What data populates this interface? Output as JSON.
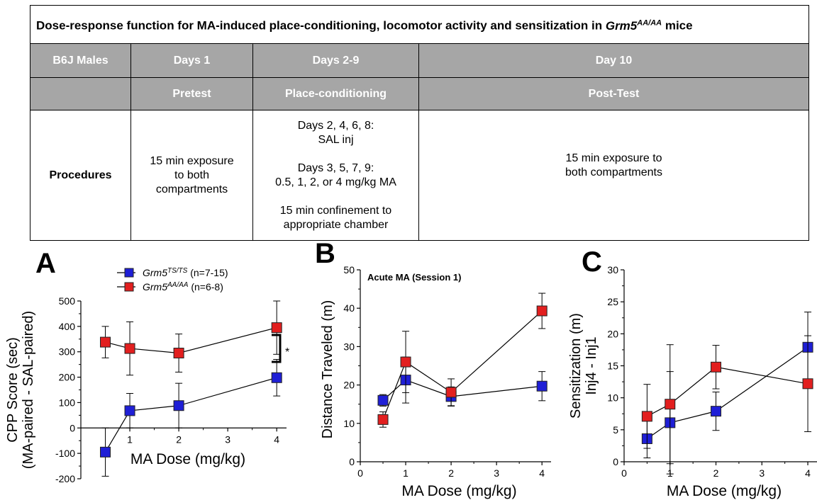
{
  "table": {
    "title_main": "Dose-response function for MA-induced place-conditioning, locomotor activity and sensitization in ",
    "title_strain": "Grm5",
    "title_strain_sup": "AA/AA",
    "title_suffix": " mice",
    "header_row": [
      "B6J Males",
      "Days 1",
      "Days 2-9",
      "Day 10"
    ],
    "subheader_row": [
      "",
      "Pretest",
      "Place-conditioning",
      "Post-Test"
    ],
    "procedures_label": "Procedures",
    "procedures": [
      "15 min exposure\nto both\ncompartments",
      "Days 2, 4, 6, 8:\nSAL inj\n\nDays 3, 5, 7, 9:\n0.5, 1, 2, or 4 mg/kg MA\n\n15 min confinement to\nappropriate chamber",
      "15 min exposure to\nboth compartments"
    ]
  },
  "colors": {
    "ts": "#1f1fd6",
    "aa": "#e21f1f"
  },
  "chart_data": [
    {
      "panel": "A",
      "type": "scatter",
      "xlabel": "MA Dose (mg/kg)",
      "ylabel_line1": "CPP Score (sec)",
      "ylabel_line2": "(MA-paired - SAL-paired)",
      "xlim": [
        0,
        4.2
      ],
      "ylim": [
        -200,
        500
      ],
      "xticks": [
        1,
        2,
        3,
        4
      ],
      "yticks": [
        -200,
        -100,
        0,
        100,
        200,
        300,
        400,
        500
      ],
      "x": [
        0.5,
        1,
        2,
        4
      ],
      "series": [
        {
          "name_base": "Grm5",
          "name_sup": "TS/TS",
          "name_suffix": " (n=7-15)",
          "color": "#1f1fd6",
          "values": [
            -95,
            68,
            88,
            198
          ],
          "err": [
            95,
            68,
            88,
            72
          ]
        },
        {
          "name_base": "Grm5",
          "name_sup": "AA/AA",
          "name_suffix": " (n=6-8)",
          "color": "#e21f1f",
          "values": [
            338,
            313,
            295,
            395
          ],
          "err": [
            62,
            105,
            75,
            105
          ]
        }
      ],
      "annotation": "*"
    },
    {
      "panel": "B",
      "type": "scatter",
      "annotation": "Acute MA (Session 1)",
      "xlabel": "MA Dose (mg/kg)",
      "ylabel": "Distance Traveled (m)",
      "xlim": [
        0,
        4.2
      ],
      "ylim": [
        0,
        50
      ],
      "xticks": [
        0,
        1,
        2,
        3,
        4
      ],
      "yticks": [
        0,
        10,
        20,
        30,
        40,
        50
      ],
      "x": [
        0.5,
        1,
        2,
        4
      ],
      "series": [
        {
          "color": "#1f1fd6",
          "values": [
            16,
            21.3,
            17,
            19.7
          ],
          "err": [
            1.5,
            6,
            2.5,
            3.8
          ]
        },
        {
          "color": "#e21f1f",
          "values": [
            11,
            26,
            18.1,
            39.3
          ],
          "err": [
            2,
            8,
            3.5,
            4.6
          ]
        }
      ]
    },
    {
      "panel": "C",
      "type": "scatter",
      "xlabel": "MA Dose (mg/kg)",
      "ylabel_line1": "Sensitization (m)",
      "ylabel_line2": "Inj4 - Inj1",
      "xlim": [
        0,
        4.2
      ],
      "ylim": [
        0,
        30
      ],
      "xticks": [
        0,
        1,
        2,
        3,
        4
      ],
      "yticks": [
        0,
        5,
        10,
        15,
        20,
        25,
        30
      ],
      "x": [
        0.5,
        1,
        2,
        4
      ],
      "series": [
        {
          "color": "#1f1fd6",
          "values": [
            3.6,
            6.1,
            7.9,
            17.9
          ],
          "err": [
            3,
            8,
            3,
            5.5
          ]
        },
        {
          "color": "#e21f1f",
          "values": [
            7.1,
            9,
            14.8,
            12.2
          ],
          "err": [
            5,
            9.3,
            3.4,
            7.5
          ]
        }
      ]
    }
  ]
}
